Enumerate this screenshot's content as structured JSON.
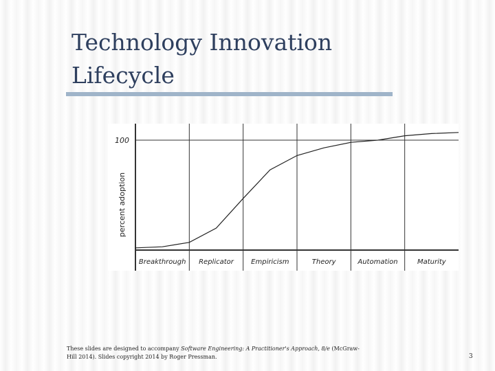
{
  "slide": {
    "title_line1": "Technology Innovation",
    "title_line2": "Lifecycle",
    "footer_prefix": "These slides are designed to accompany ",
    "footer_book": "Software Engineering: A Practitioner's Approach, 8/e",
    "footer_suffix": " (McGraw-Hill 2014). Slides copyright 2014 by Roger Pressman.",
    "page_number": "3",
    "colors": {
      "title": "#2e3f5e",
      "rule": "#9fb4c9"
    }
  },
  "chart_data": {
    "type": "line",
    "title": "",
    "xlabel": "",
    "ylabel": "percent adoption",
    "y_tick_labels": [
      "100"
    ],
    "ylim": [
      0,
      115
    ],
    "categories": [
      "Breakthrough",
      "Replicator",
      "Empiricism",
      "Theory",
      "Automation",
      "Maturity"
    ],
    "series": [
      {
        "x": [
          0,
          0.5,
          1,
          1.5,
          2,
          2.5,
          3,
          3.5,
          4,
          4.5,
          5,
          5.5,
          6
        ],
        "values": [
          2,
          3,
          7,
          20,
          47,
          73,
          86,
          93,
          98,
          100,
          104,
          106,
          107
        ]
      }
    ],
    "gridlines": {
      "horizontal_at": [
        100
      ],
      "vertical_between_categories": true
    }
  }
}
